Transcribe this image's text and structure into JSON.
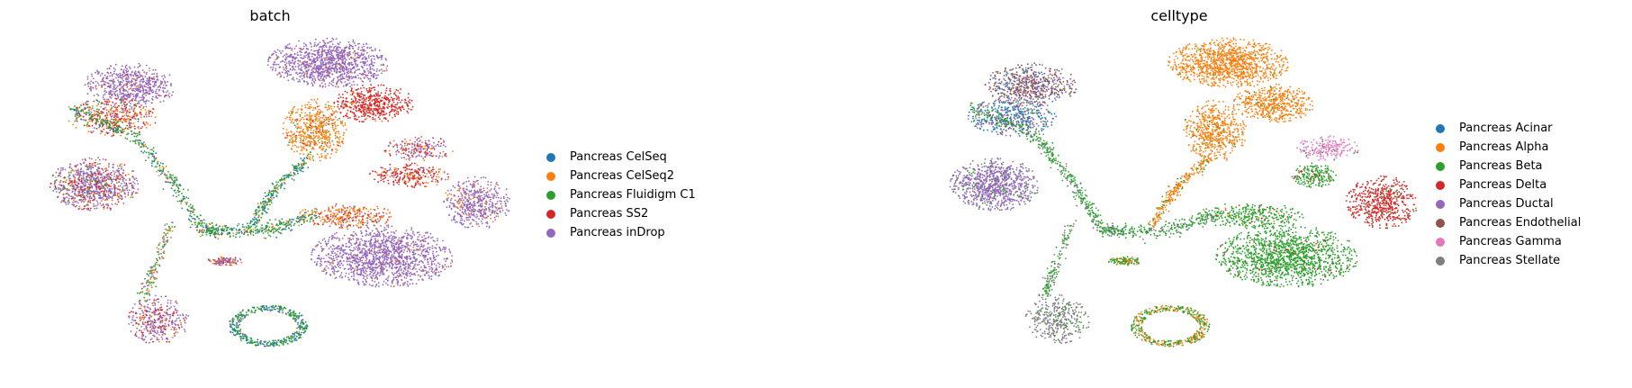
{
  "chart_data": [
    {
      "type": "scatter",
      "title": "batch",
      "xlabel": "",
      "ylabel": "",
      "grid": false,
      "legend_position": "right",
      "series": [
        {
          "name": "Pancreas CelSeq",
          "color": "#1f77b4"
        },
        {
          "name": "Pancreas CelSeq2",
          "color": "#ff7f0e"
        },
        {
          "name": "Pancreas Fluidigm C1",
          "color": "#2ca02c"
        },
        {
          "name": "Pancreas SS2",
          "color": "#d62728"
        },
        {
          "name": "Pancreas inDrop",
          "color": "#9467bd"
        }
      ]
    },
    {
      "type": "scatter",
      "title": "celltype",
      "xlabel": "",
      "ylabel": "",
      "grid": false,
      "legend_position": "right",
      "series": [
        {
          "name": "Pancreas Acinar",
          "color": "#1f77b4"
        },
        {
          "name": "Pancreas Alpha",
          "color": "#ff7f0e"
        },
        {
          "name": "Pancreas Beta",
          "color": "#2ca02c"
        },
        {
          "name": "Pancreas Delta",
          "color": "#d62728"
        },
        {
          "name": "Pancreas Ductal",
          "color": "#9467bd"
        },
        {
          "name": "Pancreas Endothelial",
          "color": "#8c564b"
        },
        {
          "name": "Pancreas Gamma",
          "color": "#e377c2"
        },
        {
          "name": "Pancreas Stellate",
          "color": "#7f7f7f"
        }
      ]
    }
  ]
}
